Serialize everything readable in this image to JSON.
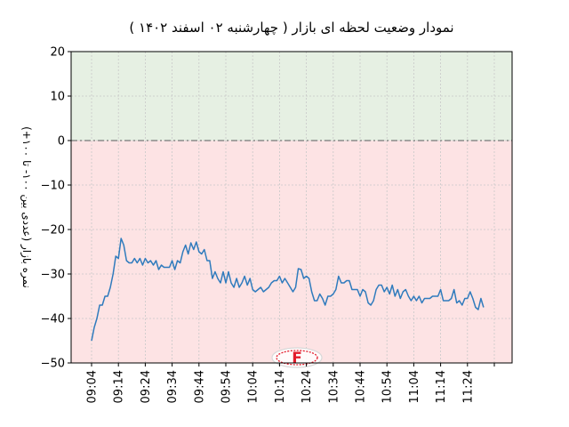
{
  "chart_data": {
    "type": "line",
    "title": "نمودار وضعیت لحظه ای بازار   ( چهارشنبه ۰۲ اسفند ۱۴۰۲ )",
    "xlabel": "",
    "ylabel": "نمره بازار (عددی بین ۱۰۰- تا ۱۰۰+)",
    "ylim": [
      -50,
      20
    ],
    "yticks": [
      20,
      10,
      0,
      -10,
      -20,
      -30,
      -40,
      -50
    ],
    "xlim": [
      0,
      146
    ],
    "xticks": [
      {
        "x": 0,
        "label": "09:04"
      },
      {
        "x": 10,
        "label": "09:14"
      },
      {
        "x": 20,
        "label": "09:24"
      },
      {
        "x": 30,
        "label": "09:34"
      },
      {
        "x": 40,
        "label": "09:44"
      },
      {
        "x": 50,
        "label": "09:54"
      },
      {
        "x": 60,
        "label": "10:04"
      },
      {
        "x": 70,
        "label": "10:14"
      },
      {
        "x": 80,
        "label": "10:24"
      },
      {
        "x": 90,
        "label": "10:34"
      },
      {
        "x": 100,
        "label": "10:44"
      },
      {
        "x": 110,
        "label": "10:54"
      },
      {
        "x": 120,
        "label": "11:04"
      },
      {
        "x": 130,
        "label": "11:14"
      },
      {
        "x": 140,
        "label": "11:24"
      },
      {
        "x": 150,
        "label": ""
      }
    ],
    "grid": true,
    "zero_line": 0,
    "regions": [
      {
        "from": 0,
        "to": 20,
        "color": "#e6f0e3"
      },
      {
        "from": -50,
        "to": 0,
        "color": "#fde3e4"
      }
    ],
    "series": [
      {
        "color": "#2f7bbd",
        "x": [
          0,
          1,
          2,
          3,
          4,
          5,
          6,
          7,
          8,
          9,
          10,
          11,
          12,
          13,
          14,
          15,
          16,
          17,
          18,
          19,
          20,
          21,
          22,
          23,
          24,
          25,
          26,
          27,
          28,
          29,
          30,
          31,
          32,
          33,
          34,
          35,
          36,
          37,
          38,
          39,
          40,
          41,
          42,
          43,
          44,
          45,
          46,
          47,
          48,
          49,
          50,
          51,
          52,
          53,
          54,
          55,
          56,
          57,
          58,
          59,
          60,
          61,
          62,
          63,
          64,
          65,
          66,
          67,
          68,
          69,
          70,
          71,
          72,
          73,
          74,
          75,
          76,
          77,
          78,
          79,
          80,
          81,
          82,
          83,
          84,
          85,
          86,
          87,
          88,
          89,
          90,
          91,
          92,
          93,
          94,
          95,
          96,
          97,
          98,
          99,
          100,
          101,
          102,
          103,
          104,
          105,
          106,
          107,
          108,
          109,
          110,
          111,
          112,
          113,
          114,
          115,
          116,
          117,
          118,
          119,
          120,
          121,
          122,
          123,
          124,
          125,
          126,
          127,
          128,
          129,
          130,
          131,
          132,
          133,
          134,
          135,
          136,
          137,
          138,
          139,
          140,
          141,
          142,
          143,
          144,
          145,
          146
        ],
        "y": [
          -45,
          -42,
          -40,
          -37,
          -37,
          -35,
          -35,
          -33,
          -30,
          -26,
          -26.5,
          -22,
          -23.5,
          -27,
          -27.5,
          -27.5,
          -26.5,
          -27.5,
          -26.5,
          -28,
          -26.5,
          -27.5,
          -27,
          -28,
          -27,
          -29,
          -28,
          -28.5,
          -28.5,
          -28.5,
          -27,
          -29,
          -27,
          -27.5,
          -25,
          -23.5,
          -25.5,
          -23,
          -24.5,
          -22.8,
          -25,
          -25.5,
          -24.5,
          -27,
          -27,
          -31,
          -29.5,
          -31,
          -32,
          -29.5,
          -32,
          -29.5,
          -32,
          -33,
          -31,
          -33,
          -32,
          -30.5,
          -32.5,
          -31,
          -33.5,
          -34,
          -33.5,
          -33,
          -34,
          -33.5,
          -33,
          -32,
          -31.5,
          -31.5,
          -30.5,
          -32,
          -31,
          -32,
          -33,
          -34,
          -33,
          -28.8,
          -29,
          -31,
          -30.5,
          -31,
          -34,
          -36,
          -36,
          -34.5,
          -35.5,
          -37,
          -35,
          -35,
          -34.5,
          -33.5,
          -30.5,
          -32,
          -32,
          -31.5,
          -31.5,
          -33.5,
          -33.5,
          -33.5,
          -35,
          -33.5,
          -34,
          -36.5,
          -37,
          -36,
          -33.5,
          -32.5,
          -32.5,
          -34,
          -33,
          -34.5,
          -32.5,
          -35,
          -33.5,
          -35.5,
          -34,
          -33.5,
          -35,
          -36,
          -35,
          -36,
          -35,
          -36.5,
          -35.5,
          -35.5,
          -35.5,
          -35,
          -35,
          -35,
          -33.5,
          -36,
          -36,
          -36,
          -35.5,
          -33.5,
          -36.5,
          -36,
          -37,
          -35.5,
          -35.5,
          -34,
          -35.5,
          -37.5,
          -38,
          -35.5,
          -37.5
        ]
      }
    ]
  },
  "watermark": {
    "icon": "logo-emblem-icon",
    "text": "F",
    "color": "#e21b2b"
  }
}
